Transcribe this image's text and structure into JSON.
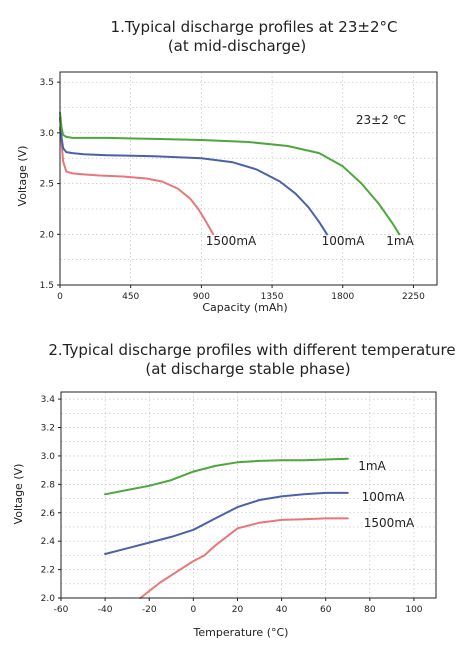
{
  "chart_data": [
    {
      "type": "line",
      "title": "1.Typical discharge profiles at 23±2°C",
      "subtitle": "(at mid-discharge)",
      "xlabel": "Capacity (mAh)",
      "ylabel": "Voltage (V)",
      "xlim": [
        0,
        2400
      ],
      "ylim": [
        1.5,
        3.6
      ],
      "xticks": [
        0,
        450,
        900,
        1350,
        1800,
        2250
      ],
      "yticks": [
        1.5,
        2.0,
        2.5,
        3.0,
        3.5
      ],
      "grid": true,
      "annotation": "23±2 ℃",
      "series": [
        {
          "name": "1500mA",
          "color": "#e8777a",
          "x": [
            0,
            10,
            20,
            40,
            80,
            150,
            250,
            400,
            550,
            650,
            750,
            830,
            880,
            920,
            950,
            975
          ],
          "y": [
            3.05,
            2.9,
            2.72,
            2.62,
            2.6,
            2.59,
            2.58,
            2.57,
            2.55,
            2.52,
            2.45,
            2.35,
            2.25,
            2.15,
            2.07,
            2.0
          ]
        },
        {
          "name": "100mA",
          "color": "#4a62a8",
          "x": [
            0,
            10,
            20,
            40,
            80,
            150,
            300,
            600,
            900,
            1100,
            1250,
            1400,
            1500,
            1580,
            1650,
            1700
          ],
          "y": [
            3.15,
            2.95,
            2.85,
            2.81,
            2.8,
            2.79,
            2.78,
            2.77,
            2.75,
            2.71,
            2.64,
            2.52,
            2.4,
            2.27,
            2.12,
            2.0
          ]
        },
        {
          "name": "1mA",
          "color": "#4fa63e",
          "x": [
            0,
            10,
            20,
            40,
            80,
            150,
            300,
            600,
            900,
            1200,
            1450,
            1650,
            1800,
            1920,
            2030,
            2120,
            2160
          ],
          "y": [
            3.2,
            3.05,
            2.98,
            2.96,
            2.95,
            2.95,
            2.95,
            2.94,
            2.93,
            2.91,
            2.87,
            2.8,
            2.67,
            2.5,
            2.3,
            2.1,
            2.0
          ]
        }
      ]
    },
    {
      "type": "line",
      "title": "2.Typical discharge profiles with different temperature",
      "subtitle": "(at discharge stable phase)",
      "xlabel": "Temperature (°C)",
      "ylabel": "Voltage (V)",
      "xlim": [
        -60,
        110
      ],
      "ylim": [
        2.0,
        3.45
      ],
      "xticks": [
        -60,
        -40,
        -20,
        0,
        20,
        40,
        60,
        80,
        100
      ],
      "yticks": [
        2.0,
        2.2,
        2.4,
        2.6,
        2.8,
        3.0,
        3.2,
        3.4
      ],
      "grid": true,
      "series": [
        {
          "name": "1mA",
          "color": "#4fa63e",
          "x": [
            -40,
            -30,
            -20,
            -10,
            0,
            10,
            20,
            30,
            40,
            50,
            60,
            70
          ],
          "y": [
            2.73,
            2.76,
            2.79,
            2.83,
            2.89,
            2.93,
            2.955,
            2.965,
            2.97,
            2.97,
            2.975,
            2.98
          ]
        },
        {
          "name": "100mA",
          "color": "#4a62a8",
          "x": [
            -40,
            -30,
            -20,
            -10,
            0,
            10,
            20,
            30,
            40,
            50,
            60,
            70
          ],
          "y": [
            2.31,
            2.35,
            2.39,
            2.43,
            2.48,
            2.56,
            2.64,
            2.69,
            2.715,
            2.73,
            2.74,
            2.74
          ]
        },
        {
          "name": "1500mA",
          "color": "#e8777a",
          "x": [
            -24,
            -15,
            -5,
            0,
            5,
            10,
            15,
            20,
            30,
            40,
            50,
            60,
            70
          ],
          "y": [
            2.0,
            2.11,
            2.21,
            2.26,
            2.3,
            2.37,
            2.43,
            2.49,
            2.53,
            2.55,
            2.555,
            2.56,
            2.56
          ]
        }
      ]
    }
  ]
}
